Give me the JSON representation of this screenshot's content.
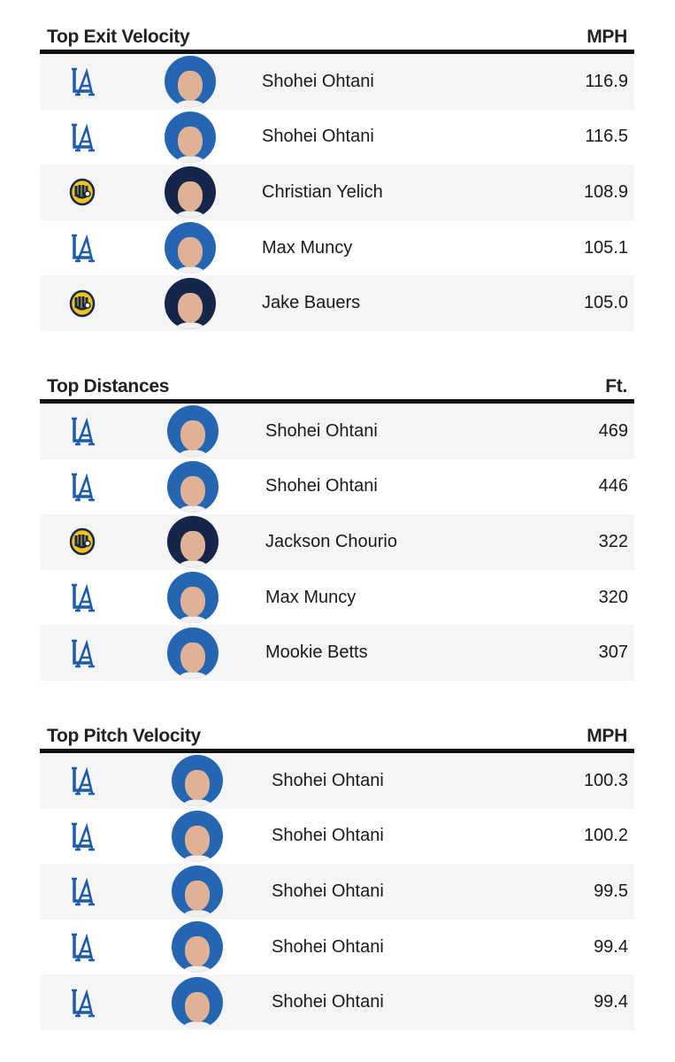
{
  "sections": [
    {
      "title": "Top Exit Velocity",
      "unit": "MPH",
      "rows": [
        {
          "player": "Shohei Ohtani",
          "value": "116.9"
        },
        {
          "player": "Shohei Ohtani",
          "value": "116.5"
        },
        {
          "player": "Christian Yelich",
          "value": "108.9"
        },
        {
          "player": "Max Muncy",
          "value": "105.1"
        },
        {
          "player": "Jake Bauers",
          "value": "105.0"
        }
      ]
    },
    {
      "title": "Top Distances",
      "unit": "Ft.",
      "rows": [
        {
          "player": "Shohei Ohtani",
          "value": "469"
        },
        {
          "player": "Shohei Ohtani",
          "value": "446"
        },
        {
          "player": "Jackson Chourio",
          "value": "322"
        },
        {
          "player": "Max Muncy",
          "value": "320"
        },
        {
          "player": "Mookie Betts",
          "value": "307"
        }
      ]
    },
    {
      "title": "Top Pitch Velocity",
      "unit": "MPH",
      "rows": [
        {
          "player": "Shohei Ohtani",
          "value": "100.3"
        },
        {
          "player": "Shohei Ohtani",
          "value": "100.2"
        },
        {
          "player": "Shohei Ohtani",
          "value": "99.5"
        },
        {
          "player": "Shohei Ohtani",
          "value": "99.4"
        },
        {
          "player": "Shohei Ohtani",
          "value": "99.4"
        }
      ]
    }
  ]
}
